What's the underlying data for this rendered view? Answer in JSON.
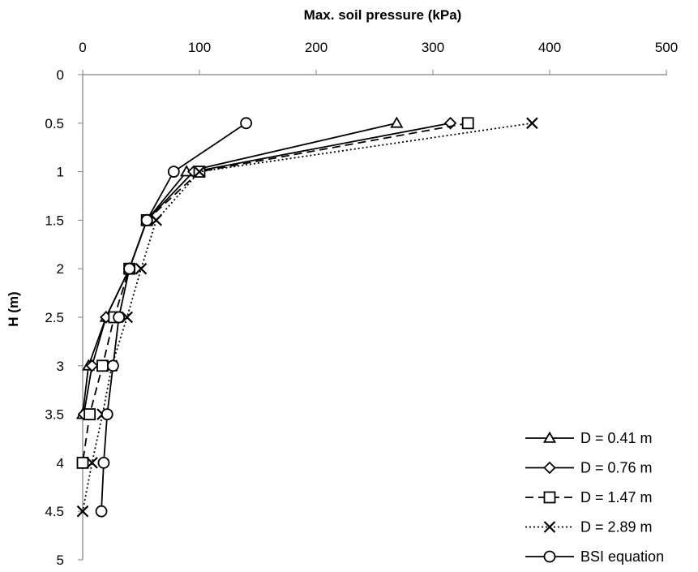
{
  "chart_data": {
    "type": "line",
    "title": "",
    "xlabel": "Max. soil pressure (kPa)",
    "ylabel": "H (m)",
    "xlim": [
      0,
      500
    ],
    "ylim": [
      0,
      5
    ],
    "x_axis_position": "top",
    "y_axis_reversed": true,
    "grid": false,
    "legend_position": "bottom-right",
    "x_ticks": [
      "0",
      "100",
      "200",
      "300",
      "400",
      "500"
    ],
    "y_ticks": [
      "0",
      "0.5",
      "1",
      "1.5",
      "2",
      "2.5",
      "3",
      "3.5",
      "4",
      "4.5",
      "5"
    ],
    "series": [
      {
        "name": "D = 0.41 m",
        "marker": "triangle",
        "line_style": "solid",
        "color": "#000000",
        "points": [
          [
            269,
            0.5
          ],
          [
            89,
            1.0
          ],
          [
            55,
            1.5
          ],
          [
            40,
            2.0
          ],
          [
            20,
            2.5
          ],
          [
            5,
            3.0
          ],
          [
            0,
            3.5
          ]
        ]
      },
      {
        "name": "D = 0.76 m",
        "marker": "diamond",
        "line_style": "solid",
        "color": "#000000",
        "points": [
          [
            315,
            0.5
          ],
          [
            95,
            1.0
          ],
          [
            55,
            1.5
          ],
          [
            40,
            2.0
          ],
          [
            20,
            2.5
          ],
          [
            8,
            3.0
          ],
          [
            1,
            3.5
          ]
        ]
      },
      {
        "name": "D = 1.47 m",
        "marker": "square",
        "line_style": "dashed",
        "color": "#000000",
        "points": [
          [
            330,
            0.5
          ],
          [
            100,
            1.0
          ],
          [
            55,
            1.5
          ],
          [
            40,
            2.0
          ],
          [
            27,
            2.5
          ],
          [
            17,
            3.0
          ],
          [
            6,
            3.5
          ],
          [
            0,
            4.0
          ]
        ]
      },
      {
        "name": "D = 2.89 m",
        "marker": "x",
        "line_style": "dotted",
        "color": "#000000",
        "points": [
          [
            385,
            0.5
          ],
          [
            100,
            1.0
          ],
          [
            63,
            1.5
          ],
          [
            50,
            2.0
          ],
          [
            38,
            2.5
          ],
          [
            25,
            3.0
          ],
          [
            17,
            3.5
          ],
          [
            8,
            4.0
          ],
          [
            0,
            4.5
          ]
        ]
      },
      {
        "name": "BSI equation",
        "marker": "circle",
        "line_style": "solid",
        "color": "#000000",
        "points": [
          [
            140,
            0.5
          ],
          [
            78,
            1.0
          ],
          [
            55,
            1.5
          ],
          [
            40,
            2.0
          ],
          [
            31,
            2.5
          ],
          [
            26,
            3.0
          ],
          [
            21,
            3.5
          ],
          [
            18,
            4.0
          ],
          [
            16,
            4.5
          ]
        ]
      }
    ]
  }
}
